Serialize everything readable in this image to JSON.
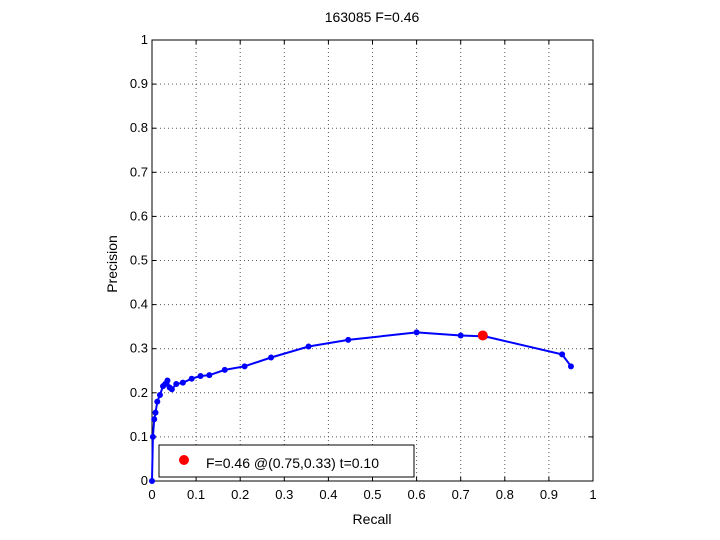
{
  "chart_data": {
    "type": "line",
    "title": "163085 F=0.46",
    "xlabel": "Recall",
    "ylabel": "Precision",
    "xlim": [
      0,
      1
    ],
    "ylim": [
      0,
      1
    ],
    "grid": true,
    "x_ticks": [
      "0",
      "0.1",
      "0.2",
      "0.3",
      "0.4",
      "0.5",
      "0.6",
      "0.7",
      "0.8",
      "0.9",
      "1"
    ],
    "y_ticks": [
      "0",
      "0.1",
      "0.2",
      "0.3",
      "0.4",
      "0.5",
      "0.6",
      "0.7",
      "0.8",
      "0.9",
      "1"
    ],
    "series": [
      {
        "color": "#0000ff",
        "marker": "dot",
        "points": [
          [
            0.0,
            0.0
          ],
          [
            0.002,
            0.1
          ],
          [
            0.005,
            0.14
          ],
          [
            0.008,
            0.155
          ],
          [
            0.012,
            0.18
          ],
          [
            0.018,
            0.195
          ],
          [
            0.025,
            0.215
          ],
          [
            0.03,
            0.22
          ],
          [
            0.035,
            0.228
          ],
          [
            0.04,
            0.212
          ],
          [
            0.045,
            0.208
          ],
          [
            0.055,
            0.22
          ],
          [
            0.07,
            0.223
          ],
          [
            0.09,
            0.232
          ],
          [
            0.11,
            0.238
          ],
          [
            0.13,
            0.24
          ],
          [
            0.165,
            0.252
          ],
          [
            0.21,
            0.26
          ],
          [
            0.27,
            0.28
          ],
          [
            0.355,
            0.305
          ],
          [
            0.445,
            0.32
          ],
          [
            0.6,
            0.337
          ],
          [
            0.7,
            0.33
          ],
          [
            0.755,
            0.328
          ],
          [
            0.93,
            0.287
          ],
          [
            0.95,
            0.26
          ]
        ]
      }
    ],
    "highlight_point": {
      "x": 0.75,
      "y": 0.33,
      "color": "#ff0000"
    },
    "legend": {
      "position": "bottom-left",
      "text": "F=0.46 @(0.75,0.33) t=0.10",
      "marker_color": "#ff0000"
    }
  }
}
